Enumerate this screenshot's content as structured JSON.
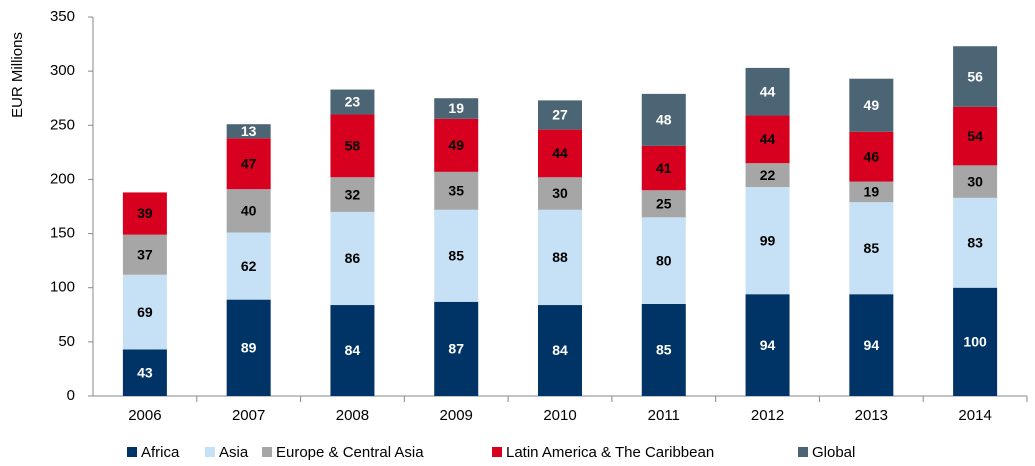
{
  "chart_data": {
    "type": "stacked_bar",
    "y_label": "EUR Millions",
    "categories": [
      "2006",
      "2007",
      "2008",
      "2009",
      "2010",
      "2011",
      "2012",
      "2013",
      "2014"
    ],
    "series": [
      {
        "name": "Africa",
        "color": "#003366",
        "values": [
          43,
          89,
          84,
          87,
          84,
          85,
          94,
          94,
          100
        ]
      },
      {
        "name": "Asia",
        "color": "#c6e0f5",
        "values": [
          69,
          62,
          86,
          85,
          88,
          80,
          99,
          85,
          83
        ]
      },
      {
        "name": "Europe & Central Asia",
        "color": "#a6a6a6",
        "values": [
          37,
          40,
          32,
          35,
          30,
          25,
          22,
          19,
          30
        ]
      },
      {
        "name": "Latin America & The Caribbean",
        "color": "#d7001e",
        "values": [
          39,
          47,
          58,
          49,
          44,
          41,
          44,
          46,
          54
        ]
      },
      {
        "name": "Global",
        "color": "#4b6574",
        "values": [
          null,
          13,
          23,
          19,
          27,
          48,
          44,
          49,
          56
        ]
      }
    ],
    "ylim": [
      0,
      350
    ],
    "yticks": [
      0,
      50,
      100,
      150,
      200,
      250,
      300,
      350
    ]
  }
}
